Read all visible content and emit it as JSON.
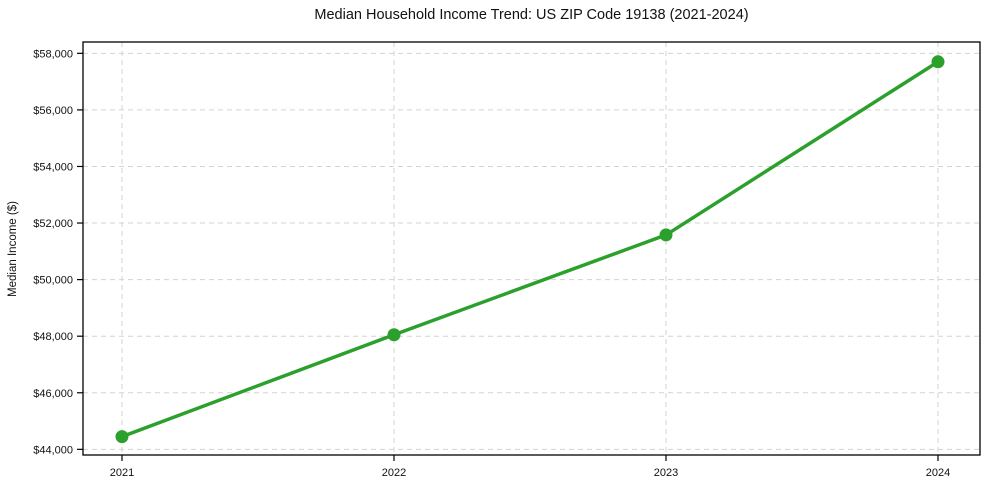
{
  "chart_data": {
    "type": "line",
    "title": "Median Household Income Trend: US ZIP Code 19138 (2021-2024)",
    "x": [
      2021,
      2022,
      2023,
      2024
    ],
    "series": [
      {
        "name": "Median Household Income",
        "values": [
          44450,
          48050,
          51580,
          57700
        ]
      }
    ],
    "xlabel": "",
    "ylabel": "Median Income ($)",
    "ylim": [
      43800,
      58400
    ],
    "yticks": [
      44000,
      46000,
      48000,
      50000,
      52000,
      54000,
      56000,
      58000
    ],
    "ytick_prefix": "$",
    "grid": true,
    "grid_style": "dashed",
    "legend": false,
    "colors": {
      "line": "#2ca02c",
      "marker": "#2ca02c",
      "gridline": "#d3d3d3",
      "spine": "#000000",
      "background": "#ffffff",
      "text": "#111111"
    }
  }
}
